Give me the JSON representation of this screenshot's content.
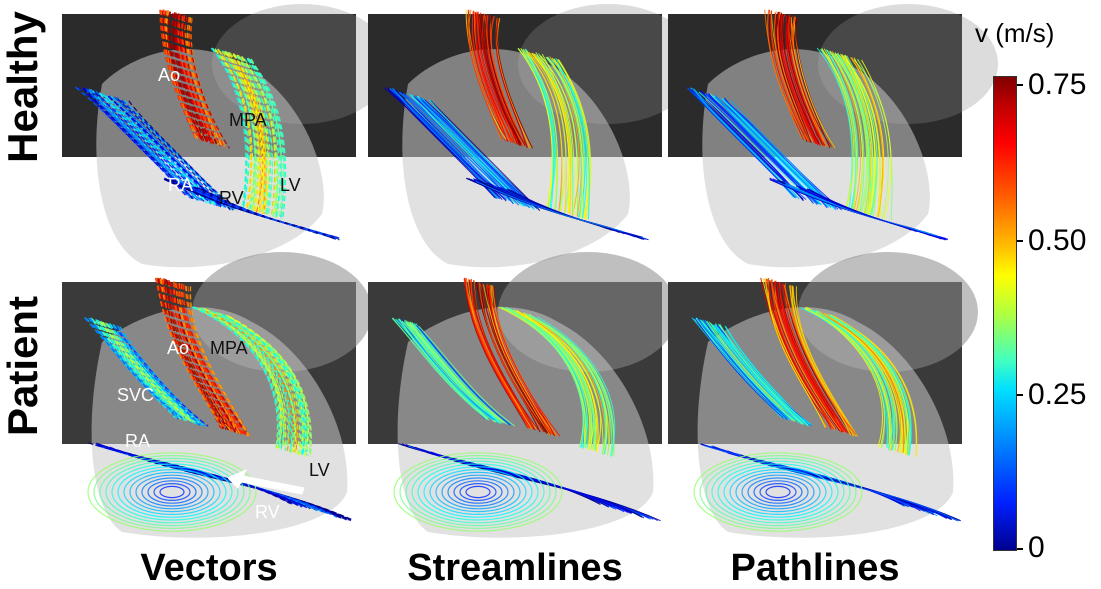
{
  "rows": [
    {
      "label": "Healthy",
      "annotations": [
        "Ao",
        "MPA",
        "RA",
        "RV",
        "LV"
      ]
    },
    {
      "label": "Patient",
      "annotations": [
        "Ao",
        "MPA",
        "SVC",
        "RA",
        "LV",
        "RV"
      ]
    }
  ],
  "columns": [
    "Vectors",
    "Streamlines",
    "Pathlines"
  ],
  "colorbar": {
    "title": "v (m/s)",
    "ticks": [
      "0.75",
      "0.50",
      "0.25",
      "0"
    ],
    "colormap": "jet"
  },
  "colors": {
    "annotation_light": "#ffffff",
    "annotation_dark": "#111111"
  }
}
